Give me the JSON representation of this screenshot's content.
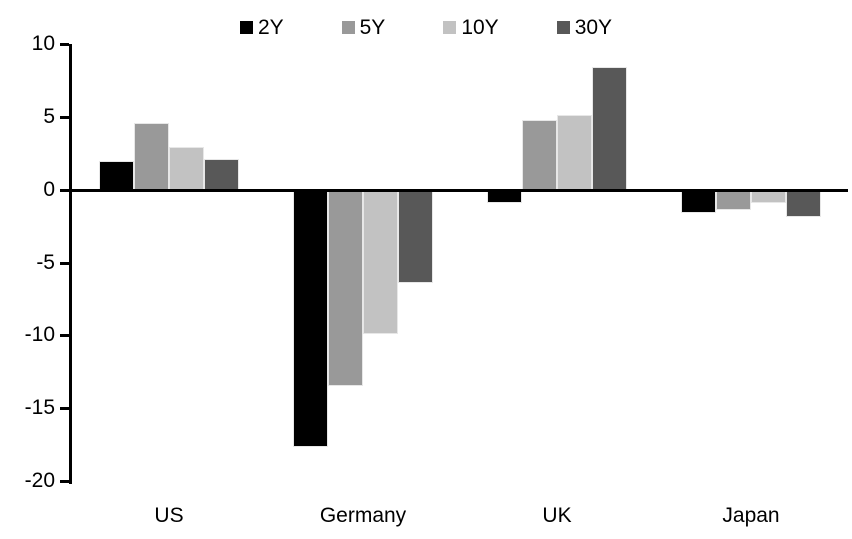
{
  "figure": {
    "background_color": "#ffffff",
    "axis_color": "#000000",
    "text_color": "#000000"
  },
  "chart_data": {
    "type": "bar",
    "title": "",
    "xlabel": "",
    "ylabel": "",
    "categories": [
      "US",
      "Germany",
      "UK",
      "Japan"
    ],
    "series": [
      {
        "name": "2Y",
        "color": "#000000",
        "values": [
          2.0,
          -17.7,
          -0.9,
          -1.6
        ]
      },
      {
        "name": "5Y",
        "color": "#999999",
        "values": [
          4.6,
          -13.5,
          4.8,
          -1.4
        ]
      },
      {
        "name": "10Y",
        "color": "#c2c2c2",
        "values": [
          2.9,
          -9.9,
          5.1,
          -0.9
        ]
      },
      {
        "name": "30Y",
        "color": "#585858",
        "values": [
          2.1,
          -6.4,
          8.4,
          -1.9
        ]
      }
    ],
    "ylim": [
      -20,
      10
    ],
    "yticks": [
      10,
      5,
      0,
      -5,
      -10,
      -15,
      -20
    ],
    "ytick_labels": [
      "10",
      "5",
      "0",
      "-5",
      "-10",
      "-15",
      "-20"
    ],
    "grid": false,
    "legend_position": "top",
    "bar_orientation": "vertical"
  }
}
